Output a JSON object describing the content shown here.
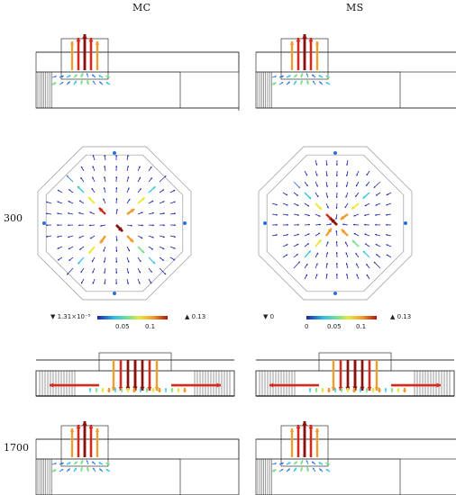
{
  "columns": [
    {
      "title": "MC"
    },
    {
      "title": "MS"
    }
  ],
  "rows": [
    {
      "label": "300"
    },
    {
      "label": "1700"
    }
  ],
  "legends": [
    {
      "min_label": "1.31×10⁻⁵",
      "tick_labels": [
        "0.05",
        "0.1"
      ],
      "max_label": "0.13"
    },
    {
      "min_label": "0",
      "tick_labels": [
        "0",
        "0.05",
        "0.1"
      ],
      "max_label": "0.13"
    }
  ],
  "colors": {
    "colormap": [
      "#1a23a8",
      "#2a6fe0",
      "#2fc3e8",
      "#7ee08a",
      "#e8e83a",
      "#f29a2a",
      "#d42a1e",
      "#8a1010"
    ],
    "outline": "#333333"
  },
  "markers": {
    "min_symbol": "▼",
    "max_symbol": "▲"
  }
}
